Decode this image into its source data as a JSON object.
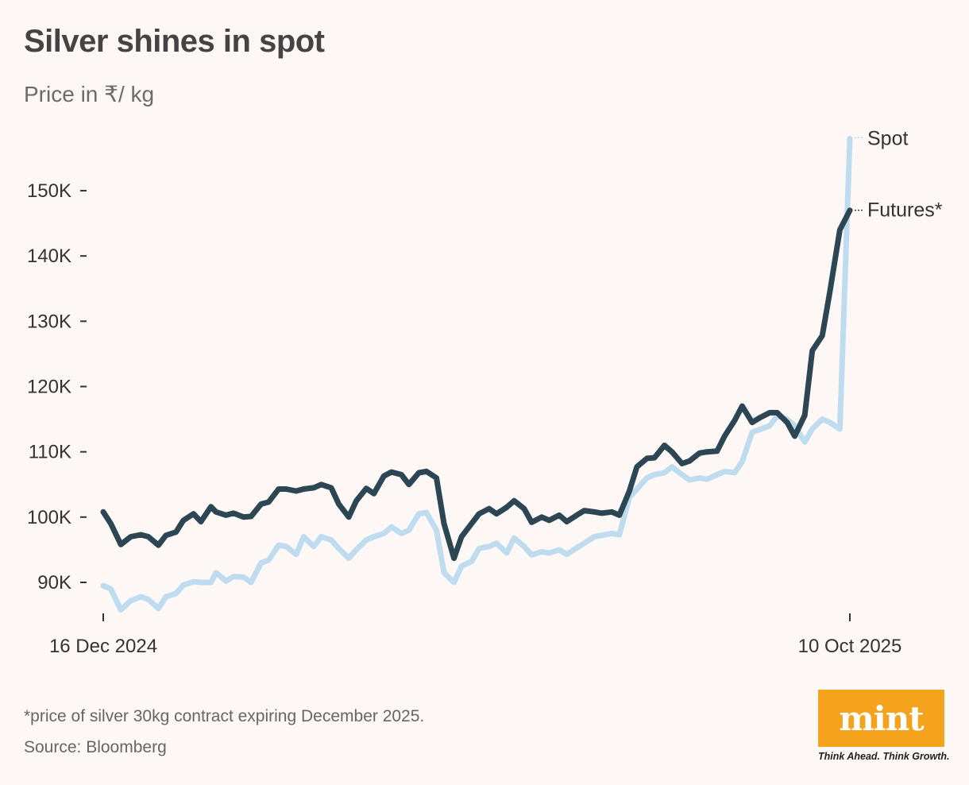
{
  "header": {
    "title": "Silver shines in spot",
    "subtitle": "Price in ₹/ kg"
  },
  "footer": {
    "footnote": "*price of silver 30kg contract expiring December 2025.",
    "source": "Source: Bloomberg"
  },
  "logo": {
    "text": "mint",
    "tagline": "Think Ahead. Think Growth.",
    "color": "#f5a21d"
  },
  "chart_data": {
    "type": "line",
    "title": "Silver shines in spot",
    "subtitle": "Price in ₹/ kg",
    "x_ticks": [
      "16 Dec 2024",
      "10 Oct 2025"
    ],
    "y_ticks": [
      {
        "value": 90000,
        "label": "90K"
      },
      {
        "value": 100000,
        "label": "100K"
      },
      {
        "value": 110000,
        "label": "110K"
      },
      {
        "value": 120000,
        "label": "120K"
      },
      {
        "value": 130000,
        "label": "130K"
      },
      {
        "value": 140000,
        "label": "140K"
      },
      {
        "value": 150000,
        "label": "150K"
      }
    ],
    "x_range": [
      "2024-12-16",
      "2025-10-10"
    ],
    "ylim": [
      85000,
      160000
    ],
    "grid": false,
    "series": [
      {
        "name": "Spot",
        "color": "#bfdcef",
        "points": [
          [
            "2024-12-16",
            89500
          ],
          [
            "2024-12-19",
            89000
          ],
          [
            "2024-12-23",
            85800
          ],
          [
            "2024-12-27",
            87200
          ],
          [
            "2024-12-31",
            87800
          ],
          [
            "2025-01-03",
            87400
          ],
          [
            "2025-01-07",
            86000
          ],
          [
            "2025-01-10",
            87800
          ],
          [
            "2025-01-14",
            88300
          ],
          [
            "2025-01-17",
            89600
          ],
          [
            "2025-01-21",
            90100
          ],
          [
            "2025-01-24",
            90000
          ],
          [
            "2025-01-28",
            90000
          ],
          [
            "2025-01-30",
            91500
          ],
          [
            "2025-02-03",
            90200
          ],
          [
            "2025-02-06",
            90900
          ],
          [
            "2025-02-10",
            90800
          ],
          [
            "2025-02-13",
            90000
          ],
          [
            "2025-02-17",
            93000
          ],
          [
            "2025-02-20",
            93400
          ],
          [
            "2025-02-24",
            95700
          ],
          [
            "2025-02-27",
            95500
          ],
          [
            "2025-03-03",
            94300
          ],
          [
            "2025-03-06",
            97000
          ],
          [
            "2025-03-10",
            95500
          ],
          [
            "2025-03-13",
            97000
          ],
          [
            "2025-03-17",
            96500
          ],
          [
            "2025-03-20",
            95200
          ],
          [
            "2025-03-24",
            93700
          ],
          [
            "2025-03-27",
            95000
          ],
          [
            "2025-03-31",
            96500
          ],
          [
            "2025-04-03",
            97000
          ],
          [
            "2025-04-07",
            97500
          ],
          [
            "2025-04-10",
            98500
          ],
          [
            "2025-04-14",
            97500
          ],
          [
            "2025-04-17",
            98000
          ],
          [
            "2025-04-21",
            100500
          ],
          [
            "2025-04-24",
            100700
          ],
          [
            "2025-04-28",
            98000
          ],
          [
            "2025-05-01",
            91500
          ],
          [
            "2025-05-05",
            90000
          ],
          [
            "2025-05-08",
            92500
          ],
          [
            "2025-05-12",
            93200
          ],
          [
            "2025-05-15",
            95200
          ],
          [
            "2025-05-19",
            95500
          ],
          [
            "2025-05-22",
            96000
          ],
          [
            "2025-05-26",
            94500
          ],
          [
            "2025-05-29",
            96800
          ],
          [
            "2025-06-02",
            95500
          ],
          [
            "2025-06-05",
            94200
          ],
          [
            "2025-06-09",
            94700
          ],
          [
            "2025-06-12",
            94500
          ],
          [
            "2025-06-16",
            95000
          ],
          [
            "2025-06-19",
            94300
          ],
          [
            "2025-06-23",
            95300
          ],
          [
            "2025-06-26",
            96000
          ],
          [
            "2025-06-30",
            97000
          ],
          [
            "2025-07-03",
            97200
          ],
          [
            "2025-07-07",
            97500
          ],
          [
            "2025-07-10",
            97300
          ],
          [
            "2025-07-14",
            103000
          ],
          [
            "2025-07-17",
            104300
          ],
          [
            "2025-07-21",
            106000
          ],
          [
            "2025-07-24",
            106500
          ],
          [
            "2025-07-28",
            106800
          ],
          [
            "2025-07-31",
            107700
          ],
          [
            "2025-08-04",
            106500
          ],
          [
            "2025-08-07",
            105700
          ],
          [
            "2025-08-11",
            106000
          ],
          [
            "2025-08-14",
            105800
          ],
          [
            "2025-08-18",
            106500
          ],
          [
            "2025-08-21",
            107000
          ],
          [
            "2025-08-25",
            106800
          ],
          [
            "2025-08-28",
            108500
          ],
          [
            "2025-09-01",
            113000
          ],
          [
            "2025-09-04",
            113400
          ],
          [
            "2025-09-08",
            114000
          ],
          [
            "2025-09-11",
            115500
          ],
          [
            "2025-09-15",
            115000
          ],
          [
            "2025-09-18",
            114000
          ],
          [
            "2025-09-22",
            111500
          ],
          [
            "2025-09-25",
            113500
          ],
          [
            "2025-09-29",
            115000
          ],
          [
            "2025-10-02",
            114500
          ],
          [
            "2025-10-06",
            113500
          ],
          [
            "2025-10-10",
            158000
          ]
        ]
      },
      {
        "name": "Futures*",
        "color": "#2c4653",
        "points": [
          [
            "2024-12-16",
            100800
          ],
          [
            "2024-12-19",
            99000
          ],
          [
            "2024-12-23",
            95800
          ],
          [
            "2024-12-27",
            97000
          ],
          [
            "2024-12-31",
            97300
          ],
          [
            "2025-01-03",
            97000
          ],
          [
            "2025-01-07",
            95700
          ],
          [
            "2025-01-10",
            97200
          ],
          [
            "2025-01-14",
            97700
          ],
          [
            "2025-01-17",
            99500
          ],
          [
            "2025-01-21",
            100500
          ],
          [
            "2025-01-24",
            99300
          ],
          [
            "2025-01-28",
            101600
          ],
          [
            "2025-01-30",
            100800
          ],
          [
            "2025-02-03",
            100300
          ],
          [
            "2025-02-06",
            100600
          ],
          [
            "2025-02-10",
            100000
          ],
          [
            "2025-02-13",
            100100
          ],
          [
            "2025-02-17",
            102000
          ],
          [
            "2025-02-20",
            102300
          ],
          [
            "2025-02-24",
            104300
          ],
          [
            "2025-02-27",
            104300
          ],
          [
            "2025-03-03",
            104000
          ],
          [
            "2025-03-06",
            104300
          ],
          [
            "2025-03-10",
            104500
          ],
          [
            "2025-03-13",
            105000
          ],
          [
            "2025-03-17",
            104500
          ],
          [
            "2025-03-20",
            102000
          ],
          [
            "2025-03-24",
            100000
          ],
          [
            "2025-03-27",
            102500
          ],
          [
            "2025-03-31",
            104400
          ],
          [
            "2025-04-03",
            103600
          ],
          [
            "2025-04-07",
            106300
          ],
          [
            "2025-04-10",
            106900
          ],
          [
            "2025-04-14",
            106500
          ],
          [
            "2025-04-17",
            105000
          ],
          [
            "2025-04-21",
            106800
          ],
          [
            "2025-04-24",
            107000
          ],
          [
            "2025-04-28",
            106000
          ],
          [
            "2025-05-01",
            99000
          ],
          [
            "2025-05-05",
            93700
          ],
          [
            "2025-05-08",
            97000
          ],
          [
            "2025-05-12",
            99000
          ],
          [
            "2025-05-15",
            100500
          ],
          [
            "2025-05-19",
            101300
          ],
          [
            "2025-05-22",
            100500
          ],
          [
            "2025-05-26",
            101500
          ],
          [
            "2025-05-29",
            102500
          ],
          [
            "2025-06-02",
            101300
          ],
          [
            "2025-06-05",
            99200
          ],
          [
            "2025-06-09",
            100000
          ],
          [
            "2025-06-12",
            99500
          ],
          [
            "2025-06-16",
            100300
          ],
          [
            "2025-06-19",
            99300
          ],
          [
            "2025-06-23",
            100300
          ],
          [
            "2025-06-26",
            101000
          ],
          [
            "2025-06-30",
            100800
          ],
          [
            "2025-07-03",
            100600
          ],
          [
            "2025-07-07",
            100800
          ],
          [
            "2025-07-10",
            100300
          ],
          [
            "2025-07-14",
            104000
          ],
          [
            "2025-07-17",
            107700
          ],
          [
            "2025-07-21",
            109000
          ],
          [
            "2025-07-24",
            109100
          ],
          [
            "2025-07-28",
            111000
          ],
          [
            "2025-07-31",
            110000
          ],
          [
            "2025-08-04",
            108200
          ],
          [
            "2025-08-07",
            108600
          ],
          [
            "2025-08-11",
            109800
          ],
          [
            "2025-08-14",
            110000
          ],
          [
            "2025-08-18",
            110100
          ],
          [
            "2025-08-21",
            112400
          ],
          [
            "2025-08-25",
            114800
          ],
          [
            "2025-08-28",
            117000
          ],
          [
            "2025-09-01",
            114500
          ],
          [
            "2025-09-04",
            115200
          ],
          [
            "2025-09-08",
            116000
          ],
          [
            "2025-09-11",
            116000
          ],
          [
            "2025-09-15",
            114500
          ],
          [
            "2025-09-18",
            112400
          ],
          [
            "2025-09-22",
            115600
          ],
          [
            "2025-09-25",
            125500
          ],
          [
            "2025-09-29",
            127800
          ],
          [
            "2025-10-02",
            134500
          ],
          [
            "2025-10-06",
            144000
          ],
          [
            "2025-10-10",
            147000
          ]
        ]
      }
    ]
  }
}
